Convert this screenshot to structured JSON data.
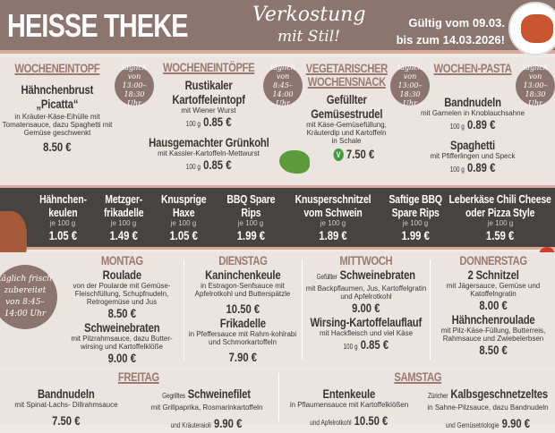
{
  "header": {
    "title": "HEISSE THEKE",
    "slogan_line1": "Verkostung",
    "slogan_line2": "mit Stil!",
    "valid_line1": "Gültig vom 09.03.",
    "valid_line2": "bis zum 14.03.2026!"
  },
  "top": [
    {
      "heading": "WOCHENEINTOPF",
      "items": [
        {
          "name": "Hähnchenbrust „Picatta“",
          "desc": "in Kräuter-Käse-Eihülle mit Tomatensauce, dazu Spaghetti mit Gemüse geschwenkt",
          "unit": "",
          "price": "8.50 €"
        }
      ],
      "badge": "täglich von 13:00–18:30 Uhr"
    },
    {
      "heading": "WOCHENEINTÖPFE",
      "items": [
        {
          "name": "Rustikaler Kartoffeleintopf",
          "desc": "mit Wiener Wurst",
          "unit": "100 g",
          "price": "0.85 €"
        },
        {
          "name": "Hausgemachter Grünkohl",
          "desc": "mit Kassler-Kartoffeln-Mettwurst",
          "unit": "100 g",
          "price": "0.85 €"
        }
      ],
      "badge": "täglich von 8:45–14:00 Uhr"
    },
    {
      "heading": "VEGETARISCHER WOCHENSNACK",
      "items": [
        {
          "name": "Gefüllter Gemüsestrudel",
          "desc": "mit Käse-Gemüsefüllung, Kräuterdip und Kartoffeln in Schale",
          "unit": "",
          "price": "7.50 €"
        }
      ],
      "badge": "täglich von 13:00–18:30 Uhr",
      "veg_mark": "V"
    },
    {
      "heading": "WOCHEN-PASTA",
      "items": [
        {
          "name": "Bandnudeln",
          "desc": "mit Garnelen in Knoblauchsahne",
          "unit": "100 g",
          "price": "0.89 €"
        },
        {
          "name": "Spaghetti",
          "desc": "mit Pfifferlingen und Speck",
          "unit": "100 g",
          "price": "0.89 €"
        }
      ],
      "badge": "täglich von 13:00–18:30 Uhr"
    }
  ],
  "band": [
    {
      "name": "Hähnchen-keulen",
      "unit": "je 100 g",
      "price": "1.05 €"
    },
    {
      "name": "Metzger-frikadelle",
      "unit": "je 100 g",
      "price": "1.49 €"
    },
    {
      "name": "Knusprige Haxe",
      "unit": "je 100 g",
      "price": "1.05 €"
    },
    {
      "name": "BBQ Spare Rips",
      "unit": "je 100 g",
      "price": "1.99 €"
    },
    {
      "name": "Knusperschnitzel vom Schwein",
      "unit": "je 100 g",
      "price": "1.89 €"
    },
    {
      "name": "Saftige BBQ Spare Rips",
      "unit": "je 100 g",
      "price": "1.99 €"
    },
    {
      "name": "Leberkäse Chili Cheese oder Pizza Style",
      "unit": "je 100 g",
      "price": "1.59 €"
    }
  ],
  "week_badge": "täglich frisch zubereitet von 8:45–14:00 Uhr",
  "days": [
    {
      "day": "MONTAG",
      "items": [
        {
          "pre": "",
          "name": "Roulade",
          "desc": "von der Poularde mit Gemüse-Fleischfüllung, Schupfnudeln, Retrogemüse und Jus",
          "unit": "",
          "price": "8.50 €"
        },
        {
          "pre": "",
          "name": "Schweinebraten",
          "desc": "mit Pilzrahmsauce, dazu Butter-wirsing und Kartoffelklöße",
          "unit": "",
          "price": "9.00 €"
        }
      ]
    },
    {
      "day": "DIENSTAG",
      "items": [
        {
          "pre": "",
          "name": "Kaninchenkeule",
          "desc": "in Estragon-Senfsauce mit Apfelrotkohl und Butterspätzle",
          "unit": "",
          "price": "10.50 €"
        },
        {
          "pre": "",
          "name": "Frikadelle",
          "desc": "in Pfeffersauce mit Rahm-kohlrabi und Schmorkartoffeln",
          "unit": "",
          "price": "7.90 €"
        }
      ]
    },
    {
      "day": "MITTWOCH",
      "items": [
        {
          "pre": "Gefüllter",
          "name": "Schweinebraten",
          "desc": "mit Backpflaumen, Jus, Kartoffelgratin und Apfelrotkohl",
          "unit": "",
          "price": "9.00 €"
        },
        {
          "pre": "",
          "name": "Wirsing-Kartoffelauflauf",
          "desc": "mit Hackfleisch und viel Käse",
          "unit": "100 g",
          "price": "0.85 €"
        }
      ]
    },
    {
      "day": "DONNERSTAG",
      "items": [
        {
          "pre": "",
          "name": "2 Schnitzel",
          "desc": "mit Jägersauce, Gemüse und Katoffelngratin",
          "unit": "",
          "price": "8.00 €"
        },
        {
          "pre": "",
          "name": "Hähnchenroulade",
          "desc": "mit Pilz-Käse-Füllung, Butterreis, Rahmsauce und Zwiebelerbsen",
          "unit": "",
          "price": "8.50 €"
        }
      ]
    }
  ],
  "bottom": [
    {
      "day": "FREITAG",
      "items": [
        {
          "pre": "",
          "name": "Bandnudeln",
          "desc": "mit Spinat-Lachs- Dillrahmsauce",
          "desc2": "",
          "price": "7.50 €"
        },
        {
          "pre": "Gegrilltes",
          "name": "Schweinefilet",
          "desc": "mit Grillpaprika, Rosmarinkartoffeln",
          "desc2": "und Kräuteraioli",
          "price": "9.90 €"
        }
      ]
    },
    {
      "day": "SAMSTAG",
      "items": [
        {
          "pre": "",
          "name": "Entenkeule",
          "desc": "in Pflaumensauce mit Kartoffelklößen",
          "desc2": "und Apfelrotkohl",
          "price": "10.50 €"
        },
        {
          "pre": "Züricher",
          "name": "Kalbsgeschnetzeltes",
          "desc": "in Sahne-Pilzsauce, dazu Bandnudeln",
          "desc2": "und Gemüsetriologie",
          "price": "9.90 €"
        }
      ]
    }
  ]
}
